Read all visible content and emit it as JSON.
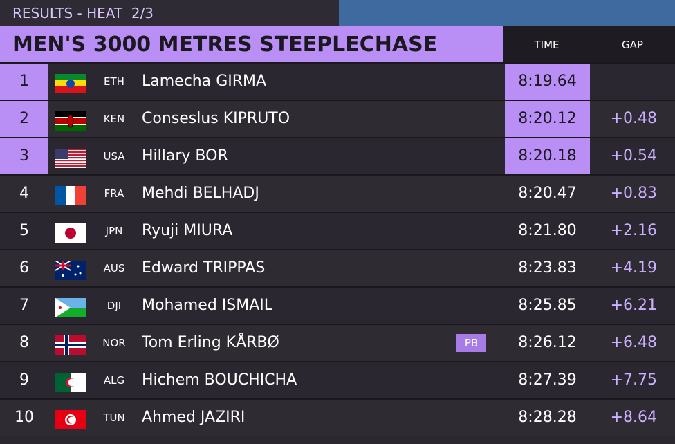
{
  "header": {
    "results_label": "RESULTS - HEAT  2/3",
    "title": "MEN'S 3000 METRES STEEPLECHASE",
    "time_label": "TIME",
    "gap_label": "GAP"
  },
  "rows": [
    {
      "rank": "1",
      "country": "ETH",
      "name": "Lamecha GIRMA",
      "time": "8:19.64"
    },
    {
      "rank": "2",
      "country": "KEN",
      "name": "Conseslus KIPRUTO",
      "time": "8:20.12",
      "gap": "+0.48"
    },
    {
      "rank": "3",
      "country": "USA",
      "name": "Hillary BOR",
      "time": "8:20.18",
      "gap": "+0.54"
    },
    {
      "rank": "4",
      "country": "FRA",
      "name": "Mehdi BELHADJ",
      "time": "8:20.47",
      "gap": "+0.83"
    },
    {
      "rank": "5",
      "country": "JPN",
      "name": "Ryuji MIURA",
      "time": "8:21.80",
      "gap": "+2.16"
    },
    {
      "rank": "6",
      "country": "AUS",
      "name": "Edward TRIPPAS",
      "time": "8:23.83",
      "gap": "+4.19"
    },
    {
      "rank": "7",
      "country": "DJI",
      "name": "Mohamed ISMAIL",
      "time": "8:25.85",
      "gap": "+6.21"
    },
    {
      "rank": "8",
      "country": "NOR",
      "name": "Tom Erling KÅRBØ",
      "note": "PB",
      "time": "8:26.12",
      "gap": "+6.48"
    },
    {
      "rank": "9",
      "country": "ALG",
      "name": "Hichem BOUCHICHA",
      "time": "8:27.39",
      "gap": "+7.75"
    },
    {
      "rank": "10",
      "country": "TUN",
      "name": "Ahmed JAZIRI",
      "time": "8:28.28",
      "gap": "+8.64"
    }
  ]
}
